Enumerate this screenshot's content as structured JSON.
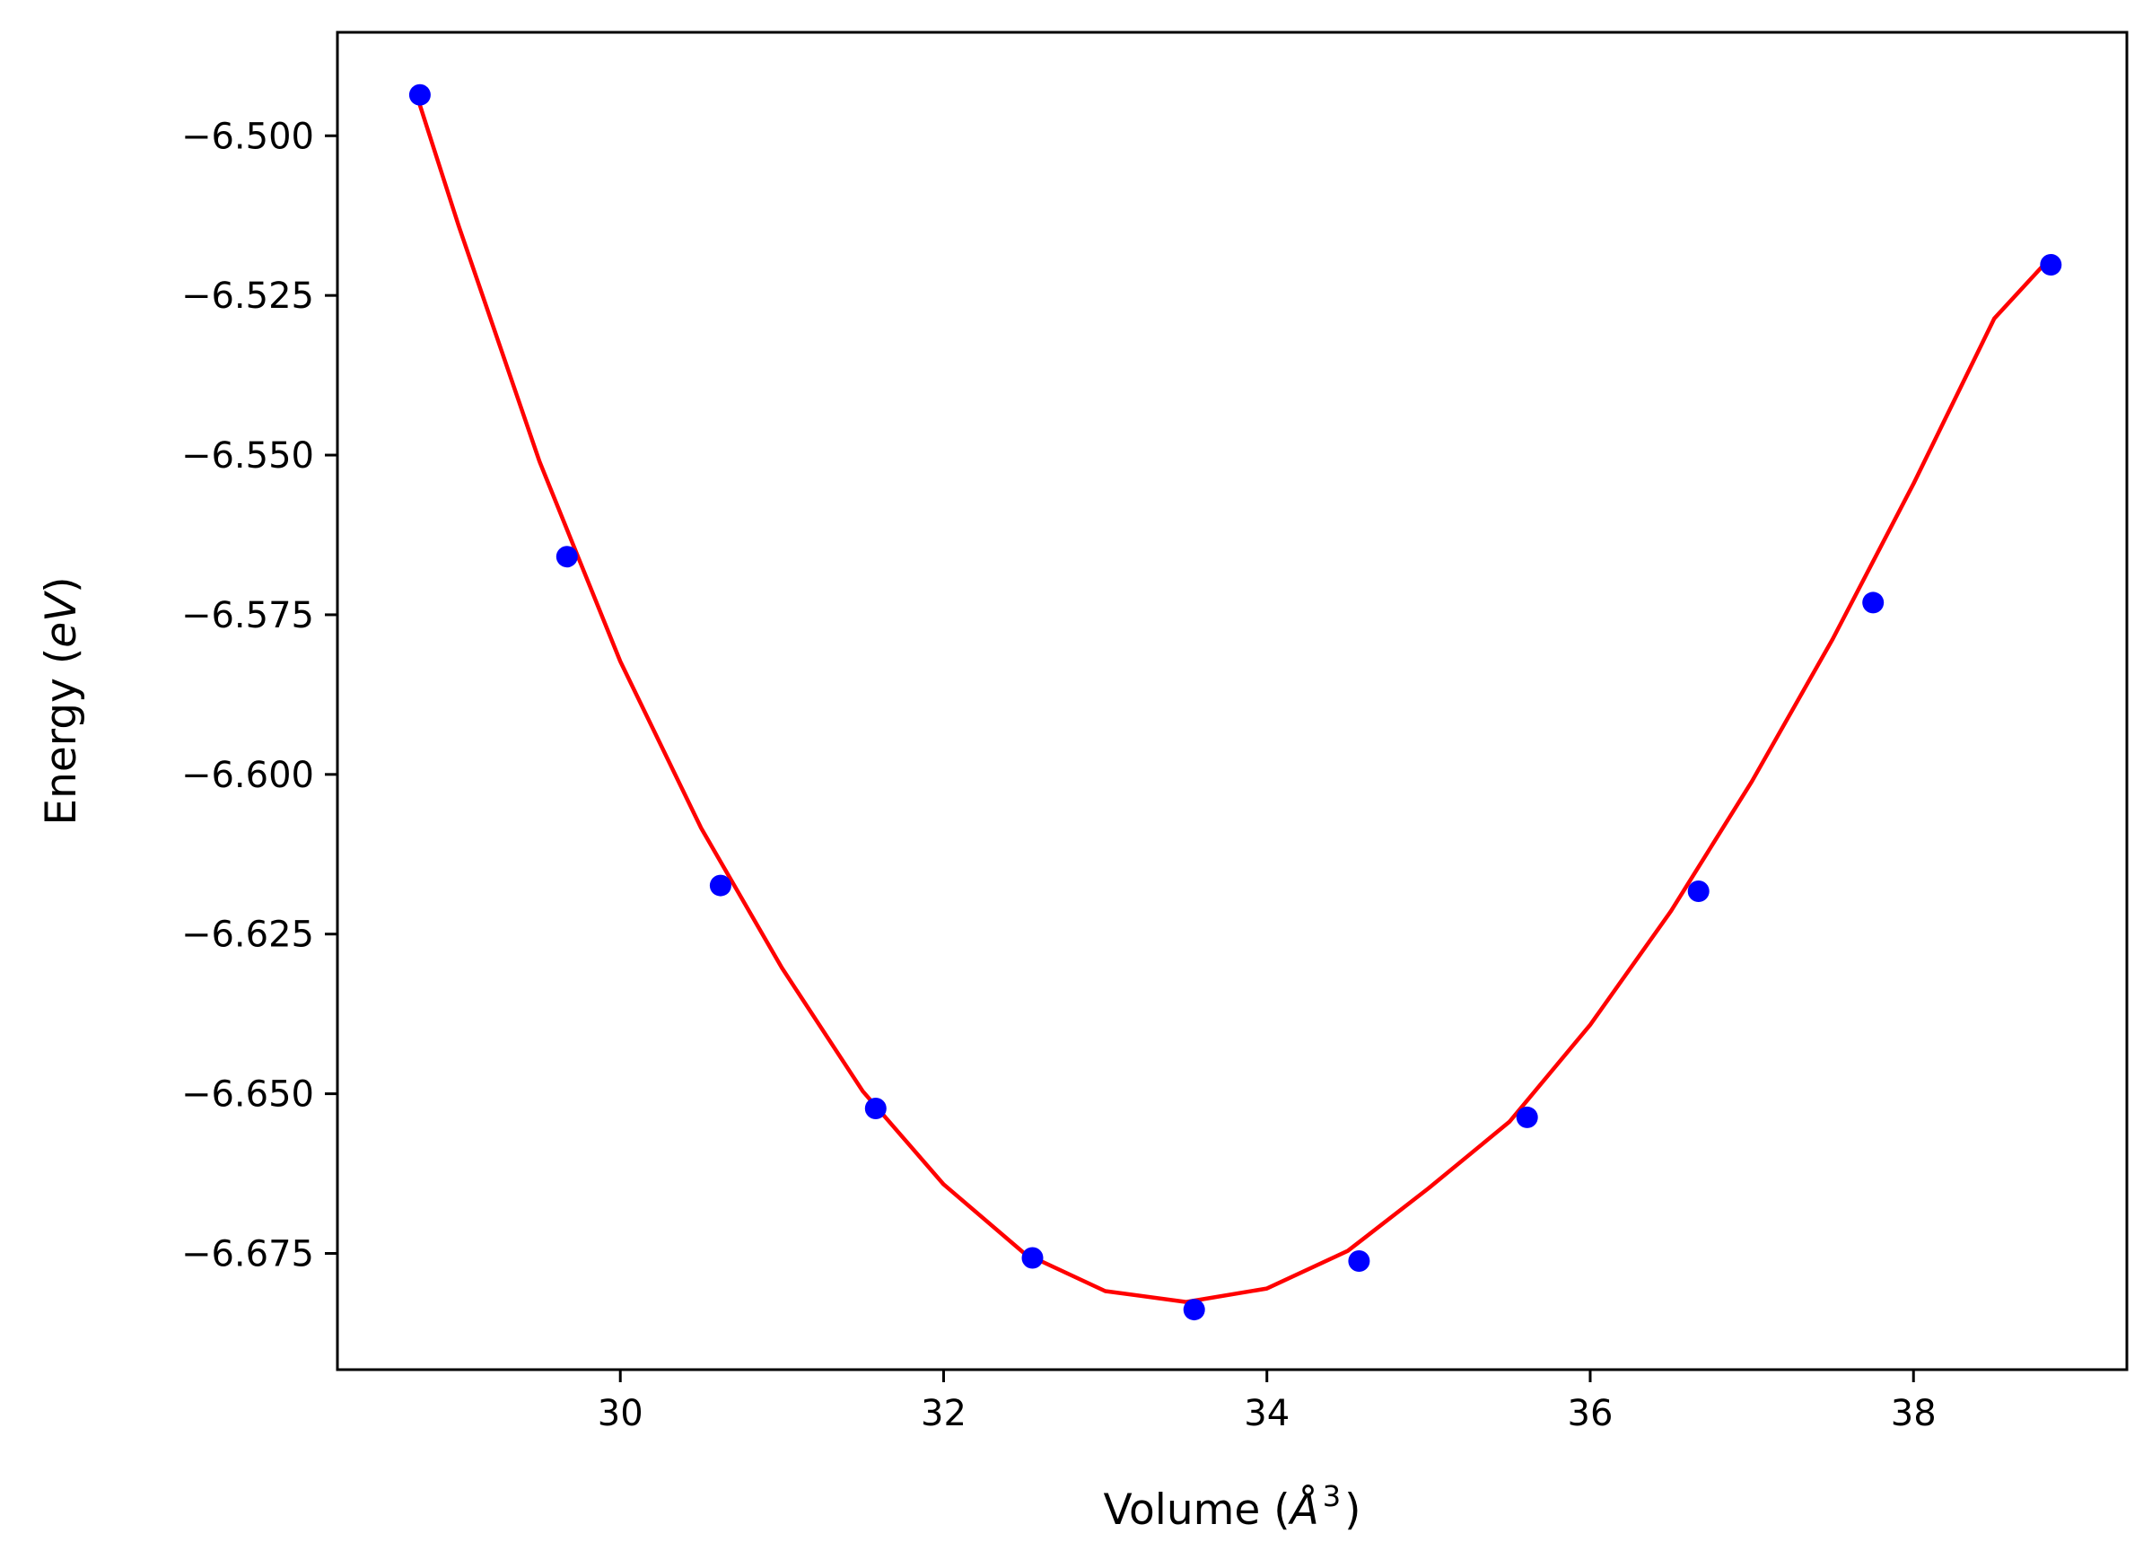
{
  "chart_data": {
    "type": "scatter",
    "title": "",
    "xlabel_parts": {
      "prefix": "Volume (",
      "unit": "Å",
      "power": "3",
      "suffix": ")"
    },
    "ylabel_parts": {
      "prefix": "Energy (",
      "unit": "eV",
      "suffix": ")"
    },
    "xlim": [
      28.25,
      39.32
    ],
    "ylim": [
      -6.6932,
      -6.4838
    ],
    "xticks": [
      30,
      32,
      34,
      36,
      38
    ],
    "xtick_labels": [
      "30",
      "32",
      "34",
      "36",
      "38"
    ],
    "yticks": [
      -6.5,
      -6.525,
      -6.55,
      -6.575,
      -6.6,
      -6.625,
      -6.65,
      -6.675
    ],
    "ytick_labels": [
      "−6.500",
      "−6.525",
      "−6.550",
      "−6.575",
      "−6.600",
      "−6.625",
      "−6.650",
      "−6.675"
    ],
    "grid": false,
    "legend": "none",
    "series": [
      {
        "kind": "scatter",
        "color": "#0000ff",
        "x": [
          28.76,
          29.67,
          30.62,
          31.58,
          32.55,
          33.55,
          34.57,
          35.61,
          36.67,
          37.75,
          38.85
        ],
        "y": [
          -6.4936,
          -6.5659,
          -6.6174,
          -6.6523,
          -6.6757,
          -6.6838,
          -6.6762,
          -6.6537,
          -6.6183,
          -6.5731,
          -6.5202
        ]
      },
      {
        "kind": "line",
        "color": "#ff0000",
        "x": [
          28.76,
          29.0,
          29.5,
          30.0,
          30.5,
          31.0,
          31.5,
          32.0,
          32.5,
          33.0,
          33.5,
          34.0,
          34.5,
          35.0,
          35.5,
          36.0,
          36.5,
          37.0,
          37.5,
          38.0,
          38.5,
          38.85
        ],
        "y": [
          -6.4952,
          -6.5141,
          -6.551,
          -6.5823,
          -6.6084,
          -6.6303,
          -6.6496,
          -6.6642,
          -6.675,
          -6.6809,
          -6.6826,
          -6.6805,
          -6.6746,
          -6.6648,
          -6.6544,
          -6.6392,
          -6.6214,
          -6.6011,
          -6.5788,
          -6.5545,
          -6.5286,
          -6.519
        ]
      }
    ]
  }
}
